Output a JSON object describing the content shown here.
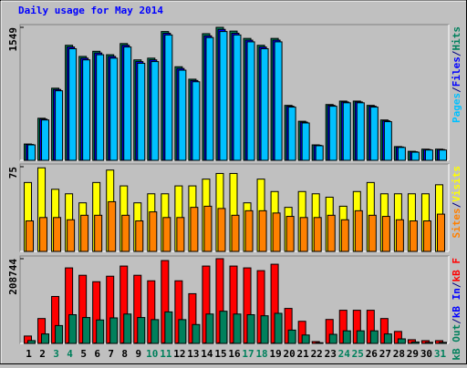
{
  "chart_data": [
    {
      "type": "bar",
      "title": "Daily usage for May 2014",
      "ylim": [
        0,
        1549
      ],
      "yticks": [
        1549
      ],
      "legend_separator": "/",
      "series": [
        {
          "name": "Pages",
          "color": "#00c0ff",
          "values": [
            180,
            470,
            810,
            1300,
            1170,
            1230,
            1190,
            1320,
            1130,
            1150,
            1460,
            1050,
            915,
            1430,
            1500,
            1460,
            1380,
            1300,
            1380,
            620,
            435,
            170,
            630,
            670,
            670,
            620,
            450,
            150,
            95,
            120,
            120
          ]
        },
        {
          "name": "Files",
          "color": "#0000ff",
          "values": [
            185,
            480,
            825,
            1320,
            1190,
            1250,
            1210,
            1340,
            1150,
            1170,
            1480,
            1070,
            930,
            1450,
            1525,
            1480,
            1400,
            1320,
            1400,
            630,
            445,
            175,
            640,
            680,
            680,
            630,
            460,
            155,
            100,
            125,
            125
          ]
        },
        {
          "name": "Hits",
          "color": "#00805c",
          "values": [
            190,
            490,
            840,
            1340,
            1210,
            1270,
            1230,
            1360,
            1170,
            1190,
            1500,
            1090,
            945,
            1475,
            1549,
            1505,
            1420,
            1340,
            1420,
            640,
            455,
            180,
            650,
            690,
            690,
            640,
            470,
            160,
            105,
            130,
            130
          ]
        }
      ]
    },
    {
      "type": "bar",
      "ylim": [
        0,
        75
      ],
      "yticks": [
        75
      ],
      "legend_separator": "/",
      "series": [
        {
          "name": "Sites",
          "color": "#ff8000",
          "values": [
            27,
            30,
            30,
            28,
            32,
            32,
            44,
            32,
            27,
            35,
            30,
            30,
            39,
            40,
            38,
            32,
            36,
            36,
            34,
            31,
            30,
            30,
            32,
            28,
            36,
            32,
            31,
            28,
            27,
            27,
            33
          ]
        },
        {
          "name": "Visits",
          "color": "#ffff00",
          "values": [
            61,
            74,
            55,
            51,
            43,
            61,
            72,
            58,
            43,
            51,
            51,
            58,
            58,
            64,
            69,
            69,
            43,
            64,
            53,
            39,
            53,
            51,
            48,
            40,
            53,
            61,
            51,
            51,
            51,
            51,
            59
          ]
        }
      ]
    },
    {
      "type": "bar",
      "ylim": [
        0,
        208744
      ],
      "yticks": [
        208744
      ],
      "legend_separator": "/",
      "categories": [
        "1",
        "2",
        "3",
        "4",
        "5",
        "6",
        "7",
        "8",
        "9",
        "10",
        "11",
        "12",
        "13",
        "14",
        "15",
        "16",
        "17",
        "18",
        "19",
        "20",
        "21",
        "22",
        "23",
        "24",
        "25",
        "26",
        "27",
        "28",
        "29",
        "30",
        "31"
      ],
      "category_colors": [
        "#000000",
        "#000000",
        "#00805c",
        "#00805c",
        "#000000",
        "#000000",
        "#000000",
        "#000000",
        "#000000",
        "#00805c",
        "#00805c",
        "#000000",
        "#000000",
        "#000000",
        "#000000",
        "#000000",
        "#00805c",
        "#00805c",
        "#000000",
        "#000000",
        "#000000",
        "#000000",
        "#000000",
        "#00805c",
        "#00805c",
        "#000000",
        "#000000",
        "#000000",
        "#000000",
        "#000000",
        "#00805c"
      ],
      "series": [
        {
          "name": "kB Out",
          "color": "#00805c",
          "values": [
            6900,
            23300,
            44000,
            70700,
            63800,
            57800,
            62900,
            72400,
            63800,
            58600,
            77600,
            58600,
            46500,
            72400,
            79300,
            72400,
            70700,
            68100,
            74100,
            32800,
            20700,
            1700,
            22400,
            31000,
            31000,
            31000,
            23300,
            11200,
            3500,
            2600,
            2600
          ]
        },
        {
          "name": "kB In",
          "color": "#0000ff",
          "values": [
            120,
            410,
            780,
            1250,
            1100,
            1020,
            1110,
            1280,
            1120,
            1030,
            1370,
            1030,
            820,
            1280,
            1400,
            1280,
            1250,
            1200,
            1310,
            580,
            370,
            30,
            400,
            550,
            550,
            550,
            410,
            200,
            60,
            45,
            45
          ]
        },
        {
          "name": "kB F",
          "color": "#ff0000",
          "values": [
            18200,
            61300,
            115700,
            186100,
            167900,
            152000,
            165600,
            190600,
            167900,
            154300,
            204200,
            154300,
            122500,
            190600,
            208744,
            190600,
            186100,
            179300,
            195100,
            86200,
            54500,
            4500,
            59000,
            81700,
            81700,
            81700,
            61300,
            29500,
            9100,
            6800,
            6800
          ]
        }
      ]
    }
  ]
}
